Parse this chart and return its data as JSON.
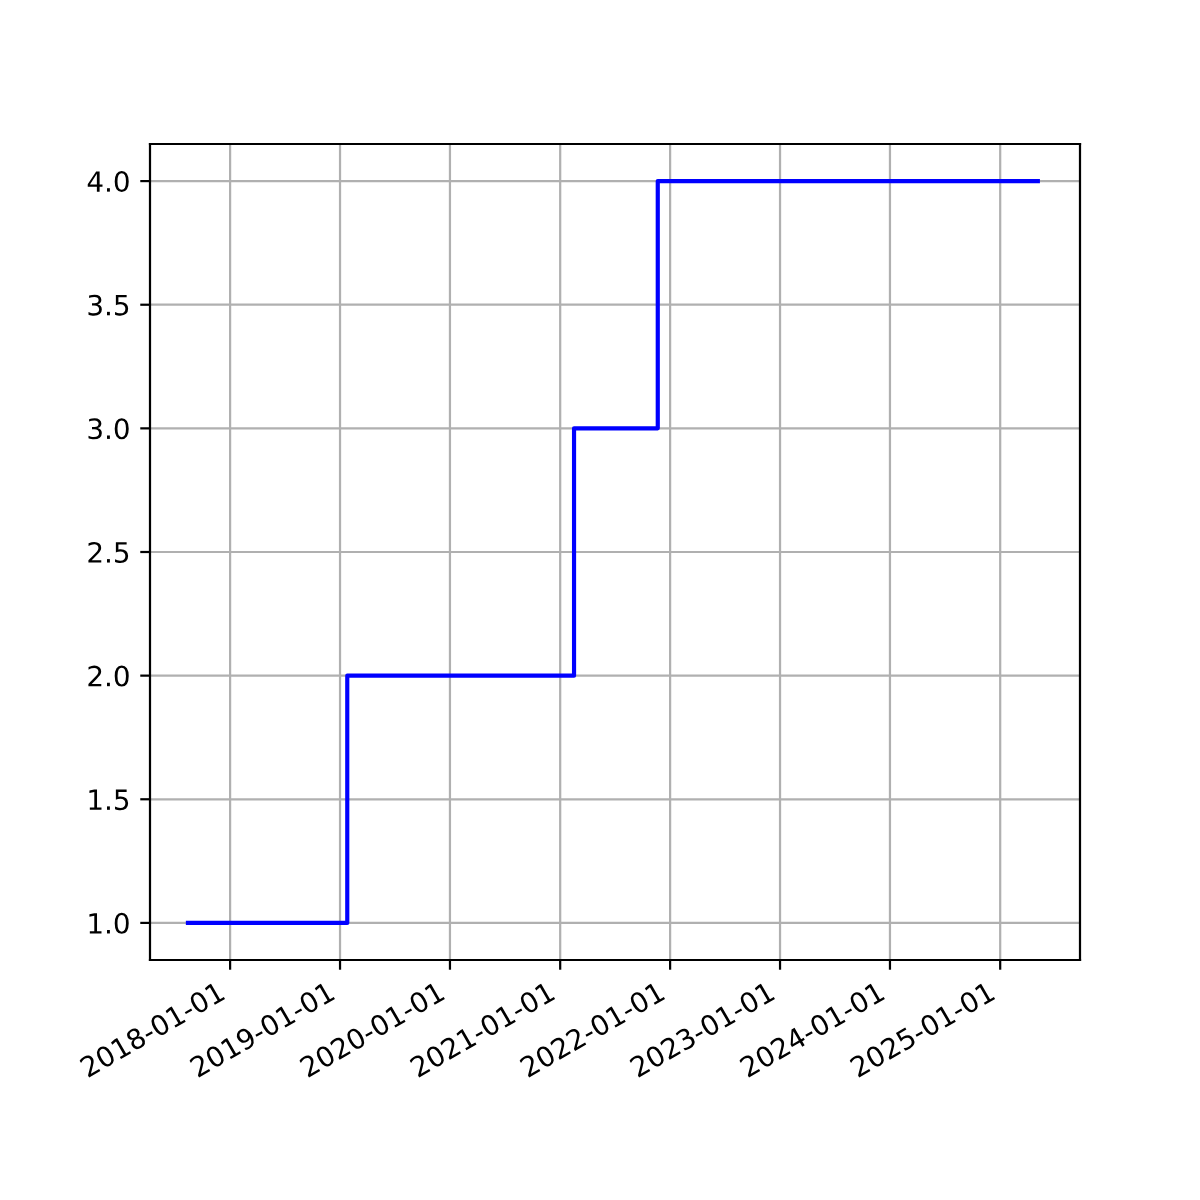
{
  "chart_data": {
    "type": "step",
    "x": [
      "2017-08-14",
      "2019-01-25",
      "2021-02-16",
      "2021-11-21",
      "2025-05-06"
    ],
    "series": [
      {
        "color": "#0000ff",
        "values": [
          1,
          2,
          3,
          4,
          4
        ]
      }
    ],
    "xlim": [
      "2017-04-10",
      "2025-09-23"
    ],
    "xticks": [
      {
        "value": "2018-01-01",
        "label": "2018-01-01"
      },
      {
        "value": "2019-01-01",
        "label": "2019-01-01"
      },
      {
        "value": "2020-01-01",
        "label": "2020-01-01"
      },
      {
        "value": "2021-01-01",
        "label": "2021-01-01"
      },
      {
        "value": "2022-01-01",
        "label": "2022-01-01"
      },
      {
        "value": "2023-01-01",
        "label": "2023-01-01"
      },
      {
        "value": "2024-01-01",
        "label": "2024-01-01"
      },
      {
        "value": "2025-01-01",
        "label": "2025-01-01"
      }
    ],
    "ylim": [
      0.85,
      4.15
    ],
    "yticks": [
      {
        "value": 1,
        "label": "1.0"
      },
      {
        "value": 1.5,
        "label": "1.5"
      },
      {
        "value": 2,
        "label": "2.0"
      },
      {
        "value": 2.5,
        "label": "2.5"
      },
      {
        "value": 3,
        "label": "3.0"
      },
      {
        "value": 3.5,
        "label": "3.5"
      },
      {
        "value": 4,
        "label": "4.0"
      }
    ],
    "grid": true
  }
}
